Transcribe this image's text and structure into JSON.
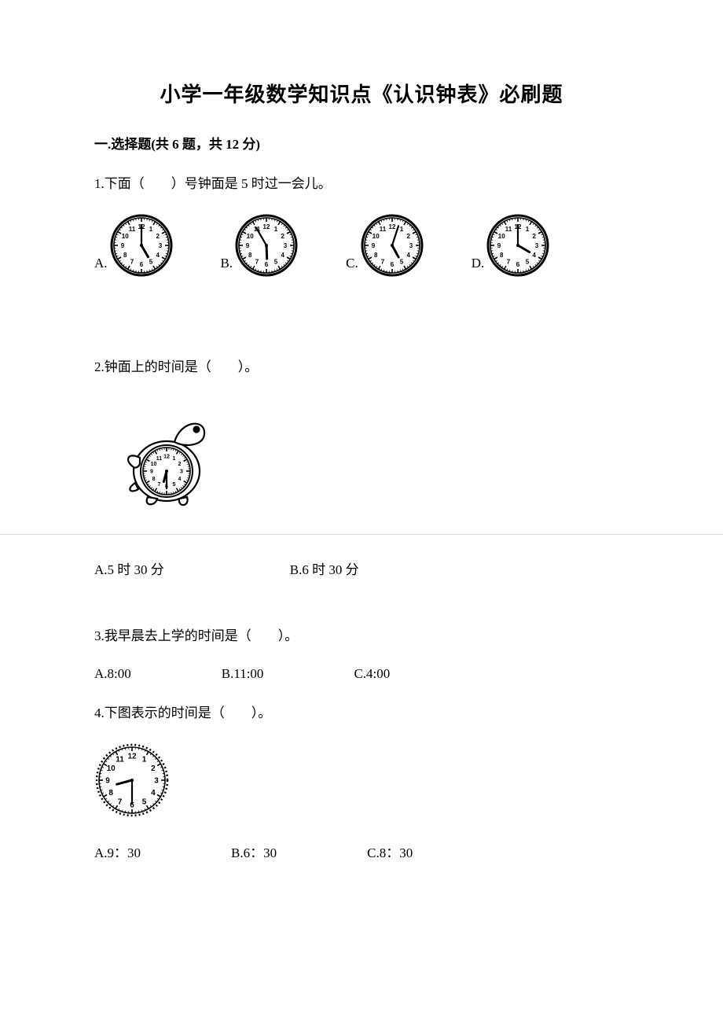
{
  "document": {
    "title": "小学一年级数学知识点《认识钟表》必刷题",
    "section_header": "一.选择题(共 6 题，共 12 分)",
    "background_color": "#ffffff",
    "text_color": "#000000",
    "title_fontsize": 26,
    "body_fontsize": 17
  },
  "q1": {
    "text": "1.下面（　　）号钟面是 5 时过一会儿。",
    "options": [
      {
        "label": "A.",
        "hour": 5,
        "minute": 0
      },
      {
        "label": "B.",
        "hour": 5,
        "minute": 55
      },
      {
        "label": "C.",
        "hour": 5,
        "minute": 3
      },
      {
        "label": "D.",
        "hour": 4,
        "minute": 0
      }
    ],
    "clock": {
      "radius": 35,
      "face_fill": "#ffffff",
      "tick_color": "#000000",
      "number_font": 8,
      "number_fill": "#000000",
      "hour_hand_len": 17,
      "minute_hand_len": 26,
      "seconds_hand": false,
      "frame_stroke": "#000000",
      "bezel_width": 3
    }
  },
  "q2": {
    "text": "2.钟面上的时间是（　　）。",
    "clock_time": {
      "hour": 6,
      "minute": 30
    },
    "options": {
      "a": "A.5 时 30 分",
      "b": "B.6 时 30 分"
    },
    "turtle": {
      "stroke": "#000000",
      "fill": "#ffffff",
      "width": 130,
      "height": 140,
      "clock_radius": 30
    }
  },
  "q3": {
    "text": "3.我早晨去上学的时间是（　　）。",
    "options": {
      "a": "A.8:00",
      "b": "B.11:00",
      "c": "C.4:00"
    }
  },
  "q4": {
    "text": "4.下图表示的时间是（　　）。",
    "clock_time": {
      "hour": 8,
      "minute": 30
    },
    "options": {
      "a": "A.9：30",
      "b": "B.6：30",
      "c": "C.8：30"
    },
    "clock": {
      "radius": 42,
      "face_fill": "#ffffff",
      "tick_color": "#000000",
      "number_font": 10,
      "number_fill": "#000000",
      "hour_hand_len": 20,
      "minute_hand_len": 30,
      "frame_stroke": "#000000",
      "dotted_bezel": true
    }
  }
}
